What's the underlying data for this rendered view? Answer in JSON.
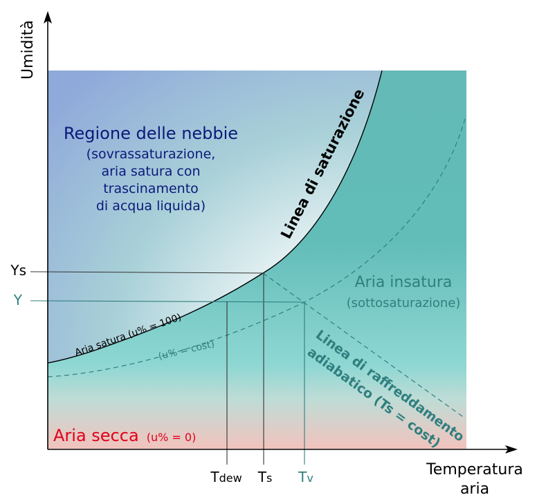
{
  "axes": {
    "y_label": "Umidità",
    "x_label_line1": "Temperatura",
    "x_label_line2": "aria"
  },
  "regions": {
    "fog_title": "Regione delle nebbie",
    "fog_line1": "(sovrassaturazione,",
    "fog_line2": "aria satura con",
    "fog_line3": "trascinamento",
    "fog_line4": "di acqua liquida)",
    "unsat_title": "Aria insatura",
    "unsat_sub": "(sottosaturazione)",
    "dry_title": "Aria secca",
    "dry_sub": "(u% =  0)"
  },
  "curves": {
    "saturation_line": "Linea di saturazione",
    "saturated_air": "Aria satura (u% = 100)",
    "constant_u": "(u% = cost)",
    "adiabatic_line1": "Linea di raffreddamento",
    "adiabatic_line2": "adiabatico (Ts = cost)"
  },
  "ticks": {
    "ys": "Ys",
    "y": "Y",
    "tdew_main": "T",
    "tdew_sub": "dew",
    "ts_main": "T",
    "ts_sub": "s",
    "tv_main": "T",
    "tv_sub": "v"
  },
  "colors": {
    "fog_text": "#0a1a7a",
    "teal_text": "#2f7f7f",
    "dry_text": "#e0001a",
    "teal_fill": "#62bcb8",
    "dry_fill": "#f2c3bd"
  }
}
